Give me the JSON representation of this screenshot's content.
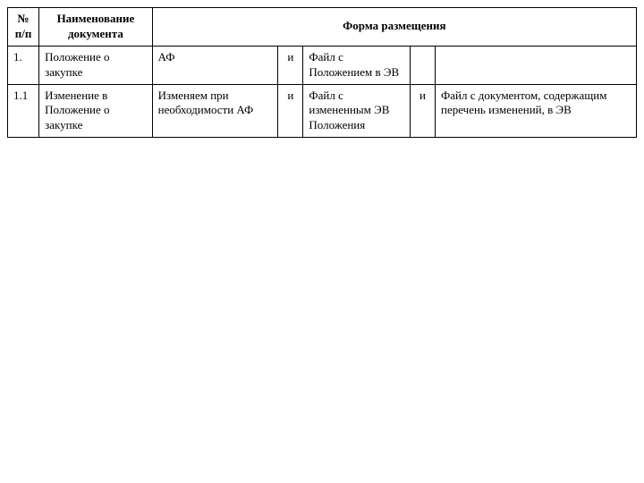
{
  "table": {
    "type": "table",
    "header": {
      "num": "№ п/п",
      "name": "Наименование документа",
      "form": "Форма размещения"
    },
    "rows": [
      {
        "num": "1.",
        "name": "Положение о закупке",
        "c1": "АФ",
        "c2": "и",
        "c3": "Файл с Положением в ЭВ",
        "c4": "",
        "c5": ""
      },
      {
        "num": "1.1",
        "name": "Изменение в Положение о закупке",
        "c1": "Изменяем при необходимости АФ",
        "c2": "и",
        "c3": "Файл с измененным ЭВ Положения",
        "c4": "и",
        "c5": "Файл с документом, содержащим перечень изменений, в ЭВ"
      }
    ],
    "border_color": "#000000",
    "background_color": "#ffffff",
    "font_family": "Times New Roman",
    "header_fontsize": 13,
    "cell_fontsize": 13
  }
}
